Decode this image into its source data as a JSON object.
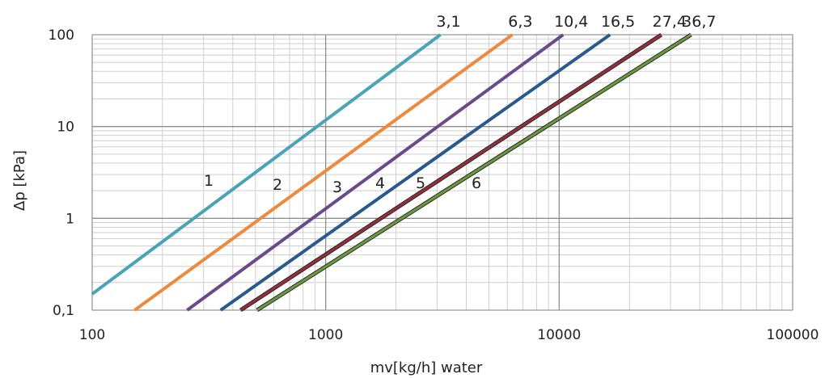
{
  "chart_data": {
    "type": "line",
    "xscale": "log",
    "yscale": "log",
    "xlim": [
      100,
      100000
    ],
    "ylim": [
      0.1,
      100
    ],
    "xlabel": "mv[kg/h] water",
    "ylabel": "Δp [kPa]",
    "x_tick_labels": [
      "100",
      "1000",
      "10000",
      "100000"
    ],
    "y_tick_labels": [
      "0,1",
      "1",
      "10",
      "100"
    ],
    "grid": true,
    "series": [
      {
        "name": "1",
        "top_label": "3,1",
        "color": "#4AA3B6",
        "points": [
          [
            100,
            0.15
          ],
          [
            3100,
            100
          ]
        ]
      },
      {
        "name": "2",
        "top_label": "6,3",
        "color": "#ED8A3D",
        "points": [
          [
            152,
            0.1
          ],
          [
            6300,
            100
          ]
        ]
      },
      {
        "name": "3",
        "top_label": "10,4",
        "color": "#6A4A8A",
        "points": [
          [
            255,
            0.1
          ],
          [
            10400,
            100
          ]
        ]
      },
      {
        "name": "4",
        "top_label": "16,5",
        "color": "#285A8C",
        "points": [
          [
            355,
            0.1
          ],
          [
            16500,
            100
          ]
        ]
      },
      {
        "name": "5",
        "top_label": "27,4",
        "color": "#962D3A",
        "points": [
          [
            432,
            0.1
          ],
          [
            27400,
            100
          ]
        ]
      },
      {
        "name": "6",
        "top_label": "36,7",
        "color": "#6A9A3A",
        "points": [
          [
            508,
            0.1
          ],
          [
            36700,
            100
          ]
        ]
      }
    ]
  }
}
